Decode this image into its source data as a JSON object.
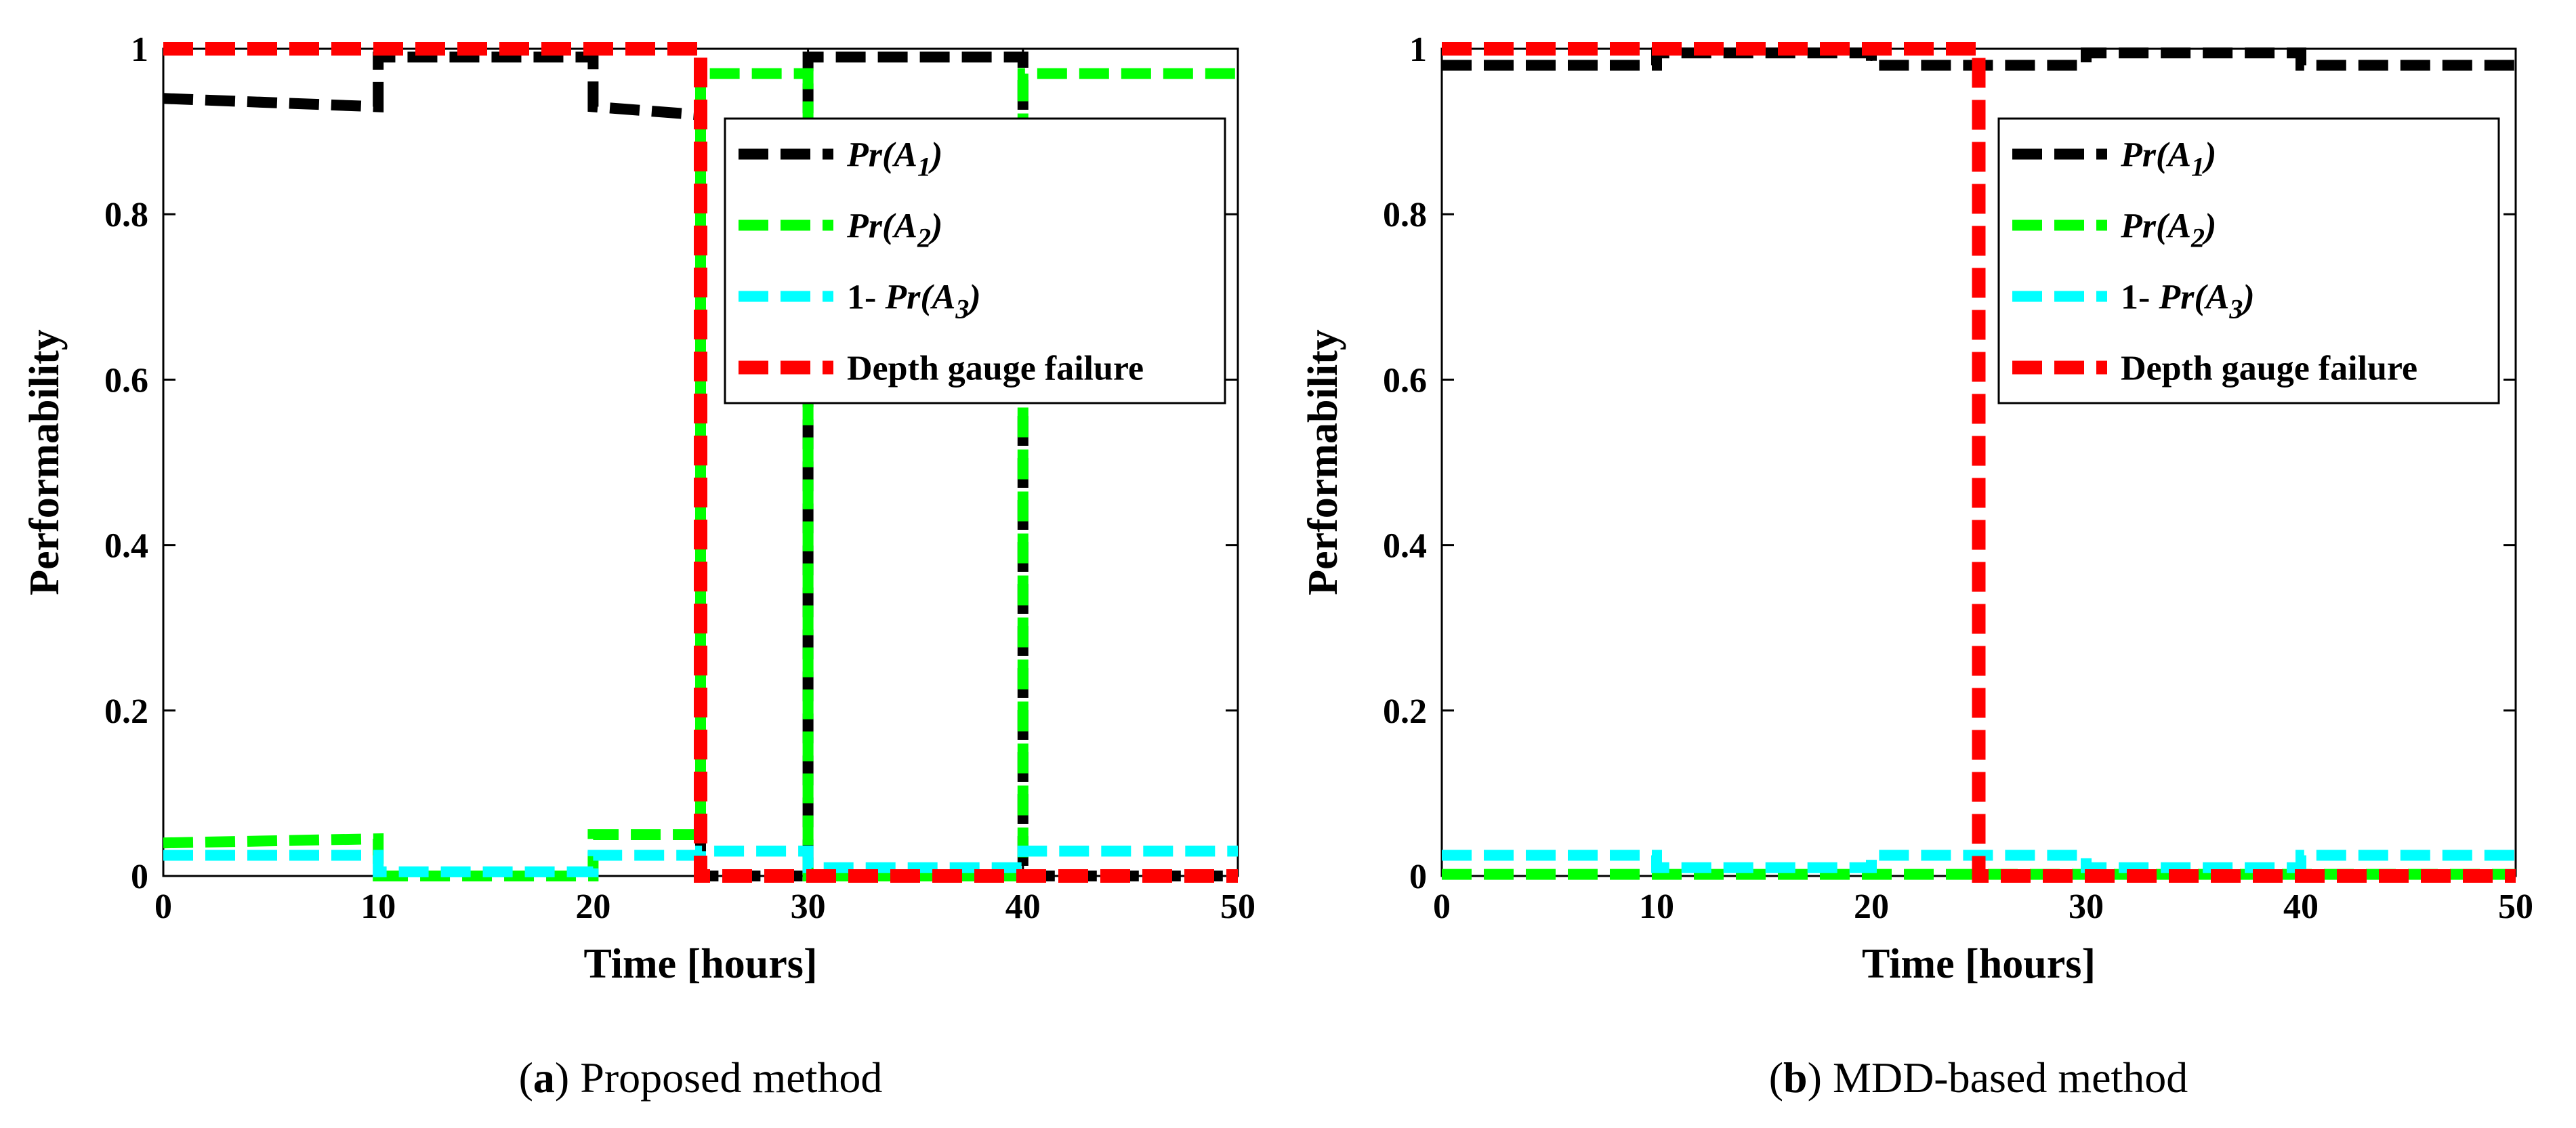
{
  "chart_data": [
    {
      "type": "line",
      "caption_letter": "a",
      "caption_rest": ") Proposed method",
      "caption_open": "(",
      "xlabel": "Time [hours]",
      "ylabel": "Performability",
      "xlim": [
        0,
        50
      ],
      "ylim": [
        0,
        1
      ],
      "xticks": [
        "0",
        "10",
        "20",
        "30",
        "40",
        "50"
      ],
      "yticks": [
        "0",
        "0.2",
        "0.4",
        "0.6",
        "0.8",
        "1"
      ],
      "legend_position": "top-right",
      "legend": [
        {
          "prefix": "",
          "name": "Pr(A",
          "sub": "1",
          "suffix": ")",
          "italic": true
        },
        {
          "prefix": "",
          "name": "Pr(A",
          "sub": "2",
          "suffix": ")",
          "italic": true
        },
        {
          "prefix": "1- ",
          "name": "Pr(A",
          "sub": "3",
          "suffix": ")",
          "italic": true
        },
        {
          "prefix": "",
          "name": "Depth gauge failure",
          "sub": "",
          "suffix": "",
          "italic": false
        }
      ],
      "series": [
        {
          "name": "Pr(A1)",
          "color": "#000000",
          "x": [
            0,
            10,
            10,
            20,
            20,
            25,
            25,
            30,
            30,
            40,
            40,
            50
          ],
          "y": [
            0.94,
            0.93,
            0.99,
            0.99,
            0.93,
            0.92,
            0,
            0,
            0.99,
            0.99,
            0,
            0
          ]
        },
        {
          "name": "Pr(A2)",
          "color": "#00ff00",
          "x": [
            0,
            10,
            10,
            20,
            20,
            25,
            25,
            30,
            30,
            40,
            40,
            50
          ],
          "y": [
            0.04,
            0.045,
            0,
            0,
            0.05,
            0.05,
            0.97,
            0.97,
            0,
            0,
            0.97,
            0.97
          ]
        },
        {
          "name": "1- Pr(A3)",
          "color": "#00ffff",
          "x": [
            0,
            10,
            10,
            20,
            20,
            25,
            25,
            30,
            30,
            40,
            40,
            50
          ],
          "y": [
            0.025,
            0.025,
            0.005,
            0.005,
            0.025,
            0.025,
            0.03,
            0.03,
            0.01,
            0.01,
            0.03,
            0.03
          ]
        },
        {
          "name": "Depth gauge failure",
          "color": "#ff0000",
          "x": [
            0,
            25,
            25,
            50
          ],
          "y": [
            1,
            1,
            0,
            0
          ]
        }
      ]
    },
    {
      "type": "line",
      "caption_letter": "b",
      "caption_rest": ") MDD-based method",
      "caption_open": "(",
      "xlabel": "Time [hours]",
      "ylabel": "Performability",
      "xlim": [
        0,
        50
      ],
      "ylim": [
        0,
        1
      ],
      "xticks": [
        "0",
        "10",
        "20",
        "30",
        "40",
        "50"
      ],
      "yticks": [
        "0",
        "0.2",
        "0.4",
        "0.6",
        "0.8",
        "1"
      ],
      "legend_position": "top-right",
      "legend": [
        {
          "prefix": "",
          "name": "Pr(A",
          "sub": "1",
          "suffix": ")",
          "italic": true
        },
        {
          "prefix": "",
          "name": "Pr(A",
          "sub": "2",
          "suffix": ")",
          "italic": true
        },
        {
          "prefix": "1- ",
          "name": "Pr(A",
          "sub": "3",
          "suffix": ")",
          "italic": true
        },
        {
          "prefix": "",
          "name": "Depth gauge failure",
          "sub": "",
          "suffix": "",
          "italic": false
        }
      ],
      "series": [
        {
          "name": "Pr(A1)",
          "color": "#000000",
          "x": [
            0,
            10,
            10,
            20,
            20,
            30,
            30,
            40,
            40,
            50
          ],
          "y": [
            0.98,
            0.98,
            0.995,
            0.995,
            0.98,
            0.98,
            0.995,
            0.995,
            0.98,
            0.98
          ]
        },
        {
          "name": "Pr(A2)",
          "color": "#00ff00",
          "x": [
            0,
            50
          ],
          "y": [
            0.002,
            0.002
          ]
        },
        {
          "name": "1- Pr(A3)",
          "color": "#00ffff",
          "x": [
            0,
            10,
            10,
            20,
            20,
            30,
            30,
            40,
            40,
            50
          ],
          "y": [
            0.025,
            0.025,
            0.01,
            0.01,
            0.025,
            0.025,
            0.01,
            0.01,
            0.025,
            0.025
          ]
        },
        {
          "name": "Depth gauge failure",
          "color": "#ff0000",
          "x": [
            0,
            25,
            25,
            50
          ],
          "y": [
            1,
            1,
            0,
            0
          ]
        }
      ]
    }
  ]
}
